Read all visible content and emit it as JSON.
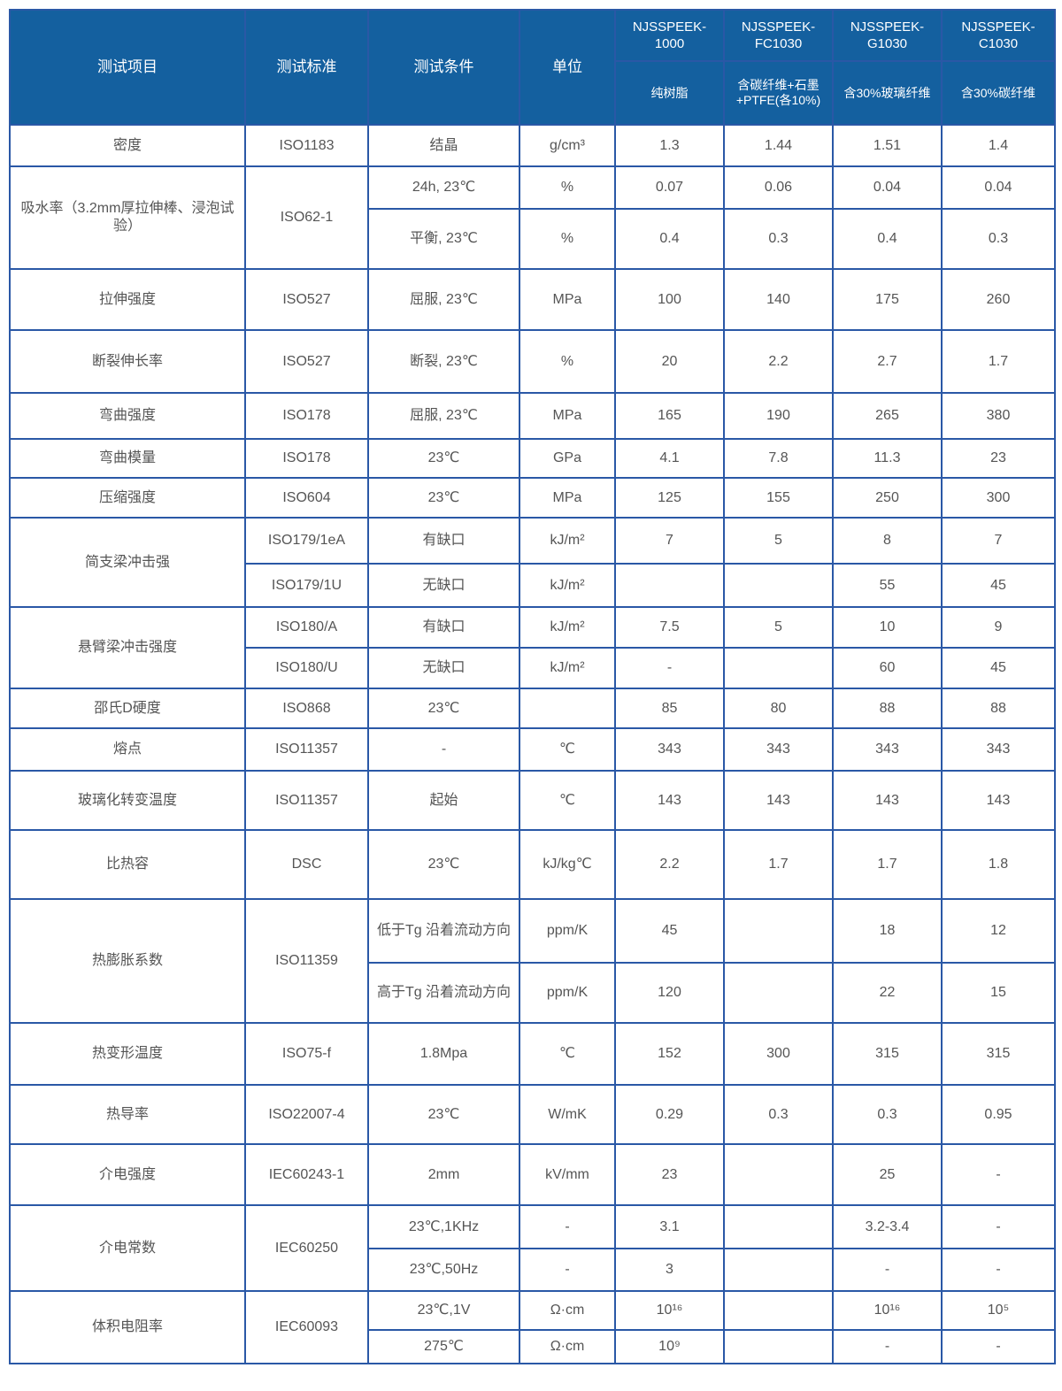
{
  "header": {
    "item": "测试项目",
    "standard": "测试标准",
    "condition": "测试条件",
    "unit": "单位",
    "models": [
      {
        "name": "NJSSPEEK-1000",
        "desc": "纯树脂"
      },
      {
        "name": "NJSSPEEK-FC1030",
        "desc": "含碳纤维+石墨+PTFE(各10%)"
      },
      {
        "name": "NJSSPEEK-G1030",
        "desc": "含30%玻璃纤维"
      },
      {
        "name": "NJSSPEEK-C1030",
        "desc": "含30%碳纤维"
      }
    ]
  },
  "colors": {
    "header_bg": "#14609f",
    "border": "#2a58a6",
    "text": "#555555"
  },
  "rows": [
    {
      "item": "密度",
      "standard": "ISO1183",
      "sub": [
        {
          "cond": "结晶",
          "unit": "g/cm³",
          "v": [
            "1.3",
            "1.44",
            "1.51",
            "1.4"
          ]
        }
      ]
    },
    {
      "item": "吸水率（3.2mm厚拉伸棒、浸泡试验）",
      "standard": "ISO62-1",
      "sub": [
        {
          "cond": "24h, 23℃",
          "unit": "%",
          "v": [
            "0.07",
            "0.06",
            "0.04",
            "0.04"
          ]
        },
        {
          "cond": "平衡, 23℃",
          "unit": "%",
          "v": [
            "0.4",
            "0.3",
            "0.4",
            "0.3"
          ]
        }
      ]
    },
    {
      "item": "拉伸强度",
      "standard": "ISO527",
      "sub": [
        {
          "cond": "屈服, 23℃",
          "unit": "MPa",
          "v": [
            "100",
            "140",
            "175",
            "260"
          ]
        }
      ]
    },
    {
      "item": "断裂伸长率",
      "standard": "ISO527",
      "sub": [
        {
          "cond": "断裂, 23℃",
          "unit": "%",
          "v": [
            "20",
            "2.2",
            "2.7",
            "1.7"
          ]
        }
      ]
    },
    {
      "item": "弯曲强度",
      "standard": "ISO178",
      "sub": [
        {
          "cond": "屈服, 23℃",
          "unit": "MPa",
          "v": [
            "165",
            "190",
            "265",
            "380"
          ]
        }
      ]
    },
    {
      "item": "弯曲模量",
      "standard": "ISO178",
      "sub": [
        {
          "cond": "23℃",
          "unit": "GPa",
          "v": [
            "4.1",
            "7.8",
            "11.3",
            "23"
          ]
        }
      ]
    },
    {
      "item": "压缩强度",
      "standard": "ISO604",
      "sub": [
        {
          "cond": "23℃",
          "unit": "MPa",
          "v": [
            "125",
            "155",
            "250",
            "300"
          ]
        }
      ]
    },
    {
      "item": "简支梁冲击强",
      "standard": "",
      "sub": [
        {
          "std": "ISO179/1eA",
          "cond": "有缺口",
          "unit": "kJ/m²",
          "v": [
            "7",
            "5",
            "8",
            "7"
          ]
        },
        {
          "std": "ISO179/1U",
          "cond": "无缺口",
          "unit": "kJ/m²",
          "v": [
            "",
            "",
            "55",
            "45"
          ]
        }
      ]
    },
    {
      "item": "悬臂梁冲击强度",
      "standard": "",
      "sub": [
        {
          "std": "ISO180/A",
          "cond": "有缺口",
          "unit": "kJ/m²",
          "v": [
            "7.5",
            "5",
            "10",
            "9"
          ]
        },
        {
          "std": "ISO180/U",
          "cond": "无缺口",
          "unit": "kJ/m²",
          "v": [
            "-",
            "",
            "60",
            "45"
          ]
        }
      ]
    },
    {
      "item": "邵氏D硬度",
      "standard": "ISO868",
      "sub": [
        {
          "cond": "23℃",
          "unit": "",
          "v": [
            "85",
            "80",
            "88",
            "88"
          ]
        }
      ]
    },
    {
      "item": "熔点",
      "standard": "ISO11357",
      "sub": [
        {
          "cond": "-",
          "unit": "℃",
          "v": [
            "343",
            "343",
            "343",
            "343"
          ]
        }
      ]
    },
    {
      "item": "玻璃化转变温度",
      "standard": "ISO11357",
      "sub": [
        {
          "cond": "起始",
          "unit": "℃",
          "v": [
            "143",
            "143",
            "143",
            "143"
          ]
        }
      ]
    },
    {
      "item": "比热容",
      "standard": "DSC",
      "sub": [
        {
          "cond": "23℃",
          "unit": "kJ/kg℃",
          "v": [
            "2.2",
            "1.7",
            "1.7",
            "1.8"
          ]
        }
      ]
    },
    {
      "item": "热膨胀系数",
      "standard": "ISO11359",
      "sub": [
        {
          "cond": "低于Tg 沿着流动方向",
          "unit": "ppm/K",
          "v": [
            "45",
            "",
            "18",
            "12"
          ]
        },
        {
          "cond": "高于Tg 沿着流动方向",
          "unit": "ppm/K",
          "v": [
            "120",
            "",
            "22",
            "15"
          ]
        }
      ]
    },
    {
      "item": "热变形温度",
      "standard": "ISO75-f",
      "sub": [
        {
          "cond": "1.8Mpa",
          "unit": "℃",
          "v": [
            "152",
            "300",
            "315",
            "315"
          ]
        }
      ]
    },
    {
      "item": "热导率",
      "standard": "ISO22007-4",
      "sub": [
        {
          "cond": "23℃",
          "unit": "W/mK",
          "v": [
            "0.29",
            "0.3",
            "0.3",
            "0.95"
          ]
        }
      ]
    },
    {
      "item": "介电强度",
      "standard": "IEC60243-1",
      "sub": [
        {
          "cond": "2mm",
          "unit": "kV/mm",
          "v": [
            "23",
            "",
            "25",
            "-"
          ]
        }
      ]
    },
    {
      "item": "介电常数",
      "standard": "IEC60250",
      "sub": [
        {
          "cond": "23℃,1KHz",
          "unit": "-",
          "v": [
            "3.1",
            "",
            "3.2-3.4",
            "-"
          ]
        },
        {
          "cond": "23℃,50Hz",
          "unit": "-",
          "v": [
            "3",
            "",
            "-",
            "-"
          ]
        }
      ]
    },
    {
      "item": "体积电阻率",
      "standard": "IEC60093",
      "sub": [
        {
          "cond": "23℃,1V",
          "unit": "Ω·cm",
          "v": [
            "10¹⁶",
            "",
            "10¹⁶",
            "10⁵"
          ]
        },
        {
          "cond": "275℃",
          "unit": "Ω·cm",
          "v": [
            "10⁹",
            "",
            "-",
            "-"
          ]
        }
      ]
    }
  ]
}
